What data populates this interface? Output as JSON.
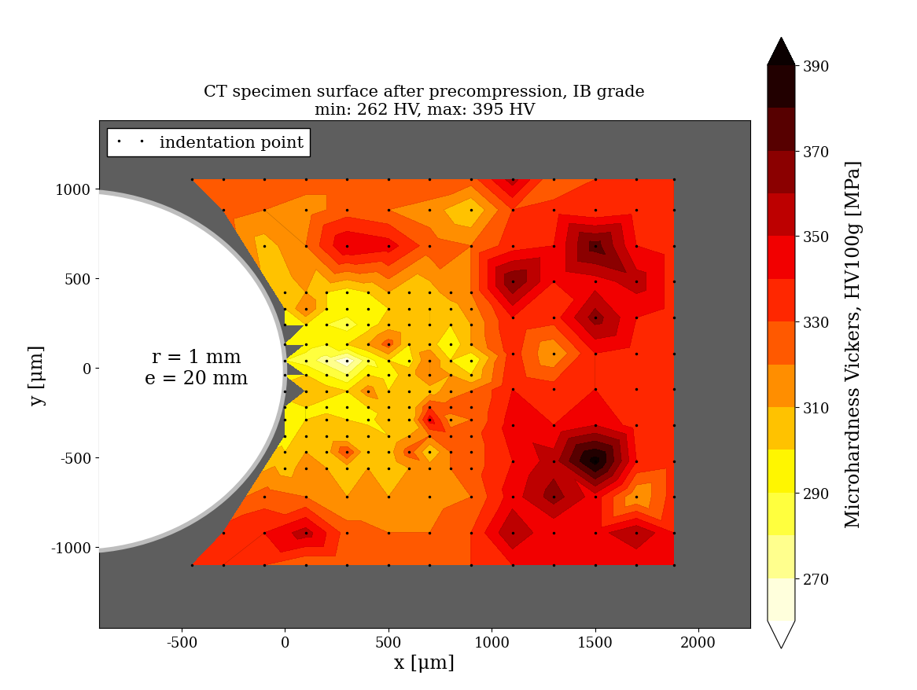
{
  "chart_data": {
    "type": "contour",
    "title": "CT specimen surface after precompression, IB grade\nmin: 262 HV, max: 395 HV",
    "xlabel": "x [μm]",
    "ylabel": "y [μm]",
    "annotation": "r = 1 mm\ne = 20 mm",
    "xlim": [
      -900,
      2250
    ],
    "xticks": [
      -500,
      0,
      500,
      1000,
      1500,
      2000
    ],
    "ylim": [
      -1450,
      1380
    ],
    "yticks": [
      -1000,
      -500,
      0,
      500,
      1000
    ],
    "legend": "upper left",
    "series": [
      {
        "name": "indentation point",
        "marker": "dot",
        "color": "#000000"
      }
    ],
    "colorbar": {
      "label": "Microhardness Vickers, HV100g [MPa]",
      "levels": [
        260,
        270,
        280,
        290,
        300,
        310,
        320,
        330,
        340,
        350,
        360,
        370,
        380,
        390
      ],
      "ticks": [
        270,
        290,
        310,
        330,
        350,
        370,
        390
      ]
    },
    "points": [
      {
        "y": 1050,
        "x": [
          -450,
          -300,
          -100,
          100,
          300,
          500,
          700,
          900,
          1100,
          1300,
          1500,
          1700,
          1880
        ],
        "hv": [
          330,
          325,
          320,
          325,
          325,
          320,
          330,
          325,
          355,
          320,
          330,
          335,
          340
        ]
      },
      {
        "y": 880,
        "x": [
          -300,
          -100,
          100,
          300,
          500,
          700,
          900,
          1100,
          1300,
          1500,
          1700,
          1880
        ],
        "hv": [
          325,
          320,
          315,
          325,
          320,
          315,
          300,
          330,
          335,
          330,
          335,
          340
        ]
      },
      {
        "y": 680,
        "x": [
          -100,
          100,
          300,
          500,
          700,
          900,
          1100,
          1300,
          1500,
          1700,
          1880
        ],
        "hv": [
          305,
          320,
          350,
          345,
          325,
          320,
          335,
          340,
          375,
          340,
          335
        ]
      },
      {
        "y": 480,
        "x": [
          1100,
          1300,
          1500,
          1700,
          1880
        ],
        "hv": [
          370,
          340,
          345,
          355,
          335
        ]
      },
      {
        "y": 420,
        "x": [
          0,
          100,
          200,
          300,
          400,
          500,
          600,
          700,
          800,
          900
        ],
        "hv": [
          305,
          310,
          300,
          295,
          300,
          310,
          300,
          305,
          315,
          320
        ]
      },
      {
        "y": 330,
        "x": [
          0,
          100,
          200,
          300,
          400,
          500,
          600,
          700,
          800,
          900
        ],
        "hv": [
          300,
          320,
          300,
          295,
          290,
          300,
          300,
          310,
          305,
          315
        ]
      },
      {
        "y": 280,
        "x": [
          1100,
          1300,
          1500,
          1700,
          1880
        ],
        "hv": [
          340,
          335,
          365,
          340,
          335
        ]
      },
      {
        "y": 240,
        "x": [
          0,
          100,
          200,
          300,
          400,
          500,
          600,
          700,
          800,
          900
        ],
        "hv": [
          295,
          300,
          290,
          285,
          295,
          305,
          300,
          310,
          300,
          310
        ]
      },
      {
        "y": 130,
        "x": [
          0,
          100,
          200,
          300,
          400,
          500,
          600,
          700,
          800,
          900
        ],
        "hv": [
          290,
          295,
          290,
          300,
          310,
          325,
          300,
          305,
          290,
          310
        ]
      },
      {
        "y": 80,
        "x": [
          1100,
          1300,
          1500,
          1700,
          1880
        ],
        "hv": [
          335,
          310,
          340,
          335,
          335
        ]
      },
      {
        "y": 40,
        "x": [
          0,
          100,
          200,
          300,
          400,
          500,
          600,
          700,
          800,
          900
        ],
        "hv": [
          290,
          285,
          275,
          262,
          285,
          300,
          295,
          320,
          300,
          290
        ]
      },
      {
        "y": -40,
        "x": [
          0,
          100,
          200,
          300,
          400,
          500,
          600,
          700,
          800,
          900
        ],
        "hv": [
          295,
          300,
          290,
          280,
          300,
          295,
          305,
          320,
          310,
          300
        ]
      },
      {
        "y": -120,
        "x": [
          1100,
          1300,
          1500,
          1700,
          1880
        ],
        "hv": [
          340,
          335,
          340,
          335,
          335
        ]
      },
      {
        "y": -130,
        "x": [
          0,
          100,
          200,
          300,
          400,
          500,
          600,
          700,
          800,
          900
        ],
        "hv": [
          300,
          310,
          305,
          300,
          315,
          300,
          310,
          305,
          315,
          320
        ]
      },
      {
        "y": -220,
        "x": [
          0,
          100,
          200,
          300,
          400,
          500,
          600,
          700,
          800,
          900
        ],
        "hv": [
          295,
          300,
          295,
          290,
          300,
          305,
          300,
          330,
          325,
          320
        ]
      },
      {
        "y": -290,
        "x": [
          0,
          100,
          200,
          300,
          400,
          500,
          600,
          700,
          800,
          900
        ],
        "hv": [
          290,
          300,
          305,
          300,
          295,
          310,
          300,
          345,
          315,
          320
        ]
      },
      {
        "y": -320,
        "x": [
          1100,
          1300,
          1500,
          1700,
          1880
        ],
        "hv": [
          345,
          340,
          350,
          335,
          335
        ]
      },
      {
        "y": -380,
        "x": [
          0,
          100,
          200,
          300,
          400,
          500,
          600,
          700,
          800,
          900
        ],
        "hv": [
          295,
          305,
          300,
          300,
          310,
          300,
          310,
          320,
          325,
          325
        ]
      },
      {
        "y": -470,
        "x": [
          0,
          100,
          200,
          300,
          400,
          500,
          600,
          700,
          800,
          900
        ],
        "hv": [
          300,
          310,
          305,
          330,
          300,
          305,
          325,
          300,
          320,
          325
        ]
      },
      {
        "y": -520,
        "x": [
          1100,
          1300,
          1500,
          1700,
          1880
        ],
        "hv": [
          340,
          355,
          395,
          340,
          335
        ]
      },
      {
        "y": -560,
        "x": [
          0,
          100,
          200,
          300,
          400,
          500,
          600,
          700,
          800,
          900
        ],
        "hv": [
          305,
          315,
          310,
          305,
          310,
          300,
          310,
          315,
          320,
          325
        ]
      },
      {
        "y": -720,
        "x": [
          -100,
          100,
          300,
          500,
          700,
          900,
          1100,
          1300,
          1500,
          1700,
          1880
        ],
        "hv": [
          325,
          320,
          310,
          310,
          315,
          320,
          345,
          365,
          345,
          310,
          335
        ]
      },
      {
        "y": -920,
        "x": [
          -300,
          -100,
          100,
          300,
          500,
          700,
          900,
          1100,
          1300,
          1500,
          1700,
          1880
        ],
        "hv": [
          335,
          340,
          355,
          325,
          320,
          320,
          330,
          360,
          340,
          345,
          360,
          340
        ]
      },
      {
        "y": -1100,
        "x": [
          -450,
          -300,
          -100,
          100,
          300,
          500,
          700,
          900,
          1100,
          1300,
          1500,
          1700,
          1880
        ],
        "hv": [
          335,
          340,
          330,
          320,
          320,
          320,
          325,
          330,
          340,
          340,
          345,
          340,
          340
        ]
      }
    ]
  }
}
